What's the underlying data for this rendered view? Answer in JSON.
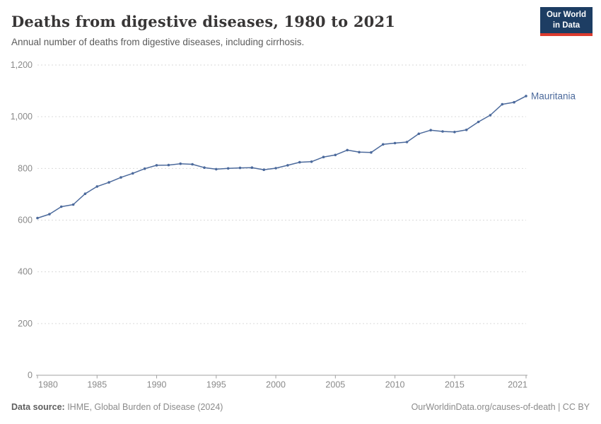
{
  "header": {
    "title": "Deaths from digestive diseases, 1980 to 2021",
    "subtitle": "Annual number of deaths from digestive diseases, including cirrhosis.",
    "logo": {
      "line1": "Our World",
      "line2": "in Data"
    }
  },
  "footer": {
    "datasource_label": "Data source:",
    "datasource_value": " IHME, Global Burden of Disease (2024)",
    "attribution": "OurWorldinData.org/causes-of-death | CC BY"
  },
  "colors": {
    "line": "#4C6A9C",
    "logo_navy": "#1d3d63",
    "logo_red": "#dc3b2e",
    "gridline": "#dadada",
    "axis": "#a1a1a1",
    "tick_label": "#8a8a8a",
    "title_text": "#383636",
    "subtitle_text": "#5b5b5b"
  },
  "chart_data": {
    "type": "line",
    "title": "Deaths from digestive diseases, 1980 to 2021",
    "subtitle": "Annual number of deaths from digestive diseases, including cirrhosis.",
    "xlabel": "",
    "ylabel": "",
    "xlim": [
      1980,
      2021
    ],
    "ylim": [
      0,
      1200
    ],
    "grid": "horizontal-dashed",
    "legend_position": "end-of-line-label",
    "x_ticks": [
      1980,
      1985,
      1990,
      1995,
      2000,
      2005,
      2010,
      2015,
      2021
    ],
    "y_ticks": [
      0,
      200,
      400,
      600,
      800,
      1000,
      1200
    ],
    "y_tick_labels": [
      "0",
      "200",
      "400",
      "600",
      "800",
      "1,000",
      "1,200"
    ],
    "x": [
      1980,
      1981,
      1982,
      1983,
      1984,
      1985,
      1986,
      1987,
      1988,
      1989,
      1990,
      1991,
      1992,
      1993,
      1994,
      1995,
      1996,
      1997,
      1998,
      1999,
      2000,
      2001,
      2002,
      2003,
      2004,
      2005,
      2006,
      2007,
      2008,
      2009,
      2010,
      2011,
      2012,
      2013,
      2014,
      2015,
      2016,
      2017,
      2018,
      2019,
      2020,
      2021
    ],
    "series": [
      {
        "name": "Mauritania",
        "color": "#4C6A9C",
        "values": [
          608,
          623,
          652,
          660,
          702,
          730,
          746,
          765,
          781,
          799,
          812,
          813,
          818,
          816,
          803,
          797,
          800,
          802,
          803,
          795,
          801,
          812,
          824,
          826,
          844,
          852,
          871,
          863,
          862,
          893,
          898,
          902,
          934,
          948,
          943,
          941,
          949,
          980,
          1006,
          1048,
          1056,
          1080
        ]
      }
    ]
  }
}
